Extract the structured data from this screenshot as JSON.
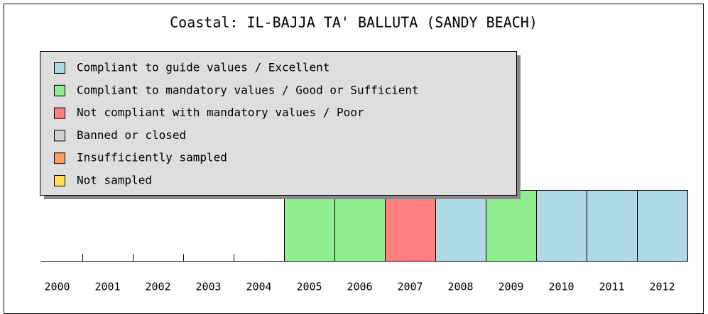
{
  "chart_data": {
    "type": "bar",
    "title": "Coastal: IL-BAJJA TA' BALLUTA (SANDY BEACH)",
    "categories": [
      "2000",
      "2001",
      "2002",
      "2003",
      "2004",
      "2005",
      "2006",
      "2007",
      "2008",
      "2009",
      "2010",
      "2011",
      "2012"
    ],
    "series": [
      {
        "name": "Compliant to guide values / Excellent",
        "color": "#add8e6",
        "values": [
          null,
          null,
          null,
          null,
          null,
          null,
          null,
          null,
          1,
          null,
          1,
          1,
          1
        ]
      },
      {
        "name": "Compliant to mandatory values / Good or Sufficient",
        "color": "#90ee90",
        "values": [
          null,
          null,
          null,
          null,
          null,
          1,
          1,
          null,
          null,
          1,
          null,
          null,
          null
        ]
      },
      {
        "name": "Not compliant with mandatory values / Poor",
        "color": "#ff8080",
        "values": [
          null,
          null,
          null,
          null,
          null,
          null,
          null,
          1,
          null,
          null,
          null,
          null,
          null
        ]
      },
      {
        "name": "Banned or closed",
        "color": "#d3d3d3",
        "values": [
          null,
          null,
          null,
          null,
          null,
          null,
          null,
          null,
          null,
          null,
          null,
          null,
          null
        ]
      },
      {
        "name": "Insufficiently sampled",
        "color": "#ffa060",
        "values": [
          null,
          null,
          null,
          null,
          null,
          null,
          null,
          null,
          null,
          null,
          null,
          null,
          null
        ]
      },
      {
        "name": "Not sampled",
        "color": "#ffe060",
        "values": [
          null,
          null,
          null,
          null,
          null,
          null,
          null,
          null,
          null,
          null,
          null,
          null,
          null
        ]
      }
    ],
    "legend": "top-left"
  }
}
